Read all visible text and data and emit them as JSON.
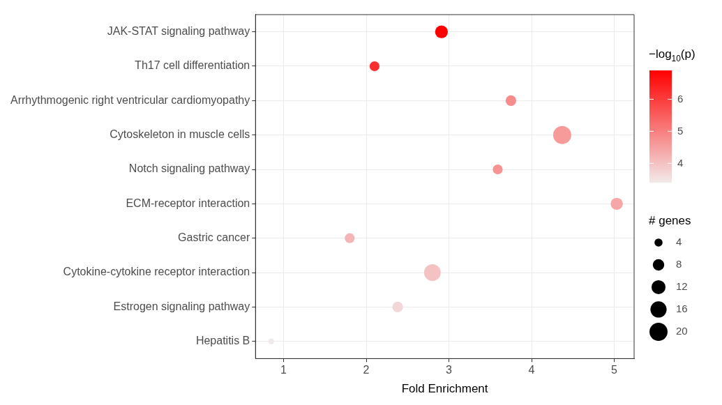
{
  "chart_data": {
    "type": "bubble",
    "orientation": "horizontal",
    "xlabel": "Fold Enrichment",
    "clabel": "−log$_{10}$(p)",
    "legend_title": "# genes",
    "grid": true,
    "categories": [
      "JAK-STAT signaling pathway",
      "Th17 cell differentiation",
      "Arrhythmogenic right ventricular cardiomyopathy",
      "Cytoskeleton in muscle cells",
      "Notch signaling pathway",
      "ECM-receptor interaction",
      "Gastric cancer",
      "Cytokine-cytokine receptor interaction",
      "Estrogen signaling pathway",
      "Hepatitis B"
    ],
    "values": [
      2.91,
      2.1,
      3.75,
      4.37,
      3.59,
      5.03,
      1.8,
      2.8,
      2.38,
      0.85
    ],
    "sizes": [
      10,
      6,
      7,
      20,
      6,
      9,
      6,
      17,
      7,
      2
    ],
    "cvalues": [
      6.9,
      6.2,
      4.8,
      4.6,
      4.7,
      4.4,
      4.2,
      4.0,
      3.7,
      3.4
    ],
    "size_legend": [
      4,
      8,
      12,
      16,
      20
    ],
    "clim": [
      3.4,
      6.9
    ],
    "cticks": [
      4,
      5,
      6
    ],
    "xlim": [
      0.66,
      5.24
    ],
    "xticks": [
      1,
      2,
      3,
      4,
      5
    ]
  }
}
